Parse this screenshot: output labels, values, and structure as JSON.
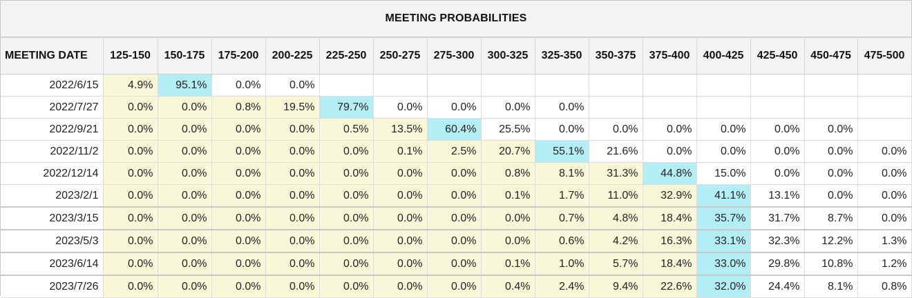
{
  "title": "MEETING PROBABILITIES",
  "columns": [
    "MEETING DATE",
    "125-150",
    "150-175",
    "175-200",
    "200-225",
    "225-250",
    "250-275",
    "275-300",
    "300-325",
    "325-350",
    "350-375",
    "375-400",
    "400-425",
    "425-450",
    "450-475",
    "475-500"
  ],
  "colors": {
    "highlight_yellow": "#f8f8d8",
    "highlight_cyan": "#b3eef5",
    "header_bg": "#f3f3f3"
  },
  "rows": [
    {
      "date": "2022/6/15",
      "cells": [
        [
          "4.9%",
          "y"
        ],
        [
          "95.1%",
          "c"
        ],
        [
          "0.0%",
          "e"
        ],
        [
          "0.0%",
          "e"
        ],
        [
          "",
          "e"
        ],
        [
          "",
          "e"
        ],
        [
          "",
          "e"
        ],
        [
          "",
          "e"
        ],
        [
          "",
          "e"
        ],
        [
          "",
          "e"
        ],
        [
          "",
          "e"
        ],
        [
          "",
          "e"
        ],
        [
          "",
          "e"
        ],
        [
          "",
          "e"
        ],
        [
          "",
          "e"
        ]
      ]
    },
    {
      "date": "2022/7/27",
      "cells": [
        [
          "0.0%",
          "y"
        ],
        [
          "0.0%",
          "y"
        ],
        [
          "0.8%",
          "y"
        ],
        [
          "19.5%",
          "y"
        ],
        [
          "79.7%",
          "c"
        ],
        [
          "0.0%",
          "e"
        ],
        [
          "0.0%",
          "e"
        ],
        [
          "0.0%",
          "e"
        ],
        [
          "0.0%",
          "e"
        ],
        [
          "",
          "e"
        ],
        [
          "",
          "e"
        ],
        [
          "",
          "e"
        ],
        [
          "",
          "e"
        ],
        [
          "",
          "e"
        ],
        [
          "",
          "e"
        ]
      ]
    },
    {
      "date": "2022/9/21",
      "cells": [
        [
          "0.0%",
          "y"
        ],
        [
          "0.0%",
          "y"
        ],
        [
          "0.0%",
          "y"
        ],
        [
          "0.0%",
          "y"
        ],
        [
          "0.5%",
          "y"
        ],
        [
          "13.5%",
          "y"
        ],
        [
          "60.4%",
          "c"
        ],
        [
          "25.5%",
          "e"
        ],
        [
          "0.0%",
          "e"
        ],
        [
          "0.0%",
          "e"
        ],
        [
          "0.0%",
          "e"
        ],
        [
          "0.0%",
          "e"
        ],
        [
          "0.0%",
          "e"
        ],
        [
          "0.0%",
          "e"
        ],
        [
          "",
          "e"
        ]
      ]
    },
    {
      "date": "2022/11/2",
      "cells": [
        [
          "0.0%",
          "y"
        ],
        [
          "0.0%",
          "y"
        ],
        [
          "0.0%",
          "y"
        ],
        [
          "0.0%",
          "y"
        ],
        [
          "0.0%",
          "y"
        ],
        [
          "0.1%",
          "y"
        ],
        [
          "2.5%",
          "y"
        ],
        [
          "20.7%",
          "y"
        ],
        [
          "55.1%",
          "c"
        ],
        [
          "21.6%",
          "e"
        ],
        [
          "0.0%",
          "e"
        ],
        [
          "0.0%",
          "e"
        ],
        [
          "0.0%",
          "e"
        ],
        [
          "0.0%",
          "e"
        ],
        [
          "0.0%",
          "e"
        ]
      ]
    },
    {
      "date": "2022/12/14",
      "cells": [
        [
          "0.0%",
          "y"
        ],
        [
          "0.0%",
          "y"
        ],
        [
          "0.0%",
          "y"
        ],
        [
          "0.0%",
          "y"
        ],
        [
          "0.0%",
          "y"
        ],
        [
          "0.0%",
          "y"
        ],
        [
          "0.0%",
          "y"
        ],
        [
          "0.8%",
          "y"
        ],
        [
          "8.1%",
          "y"
        ],
        [
          "31.3%",
          "y"
        ],
        [
          "44.8%",
          "c"
        ],
        [
          "15.0%",
          "e"
        ],
        [
          "0.0%",
          "e"
        ],
        [
          "0.0%",
          "e"
        ],
        [
          "0.0%",
          "e"
        ]
      ]
    },
    {
      "date": "2023/2/1",
      "cells": [
        [
          "0.0%",
          "y"
        ],
        [
          "0.0%",
          "y"
        ],
        [
          "0.0%",
          "y"
        ],
        [
          "0.0%",
          "y"
        ],
        [
          "0.0%",
          "y"
        ],
        [
          "0.0%",
          "y"
        ],
        [
          "0.0%",
          "y"
        ],
        [
          "0.1%",
          "y"
        ],
        [
          "1.7%",
          "y"
        ],
        [
          "11.0%",
          "y"
        ],
        [
          "32.9%",
          "y"
        ],
        [
          "41.1%",
          "c"
        ],
        [
          "13.1%",
          "e"
        ],
        [
          "0.0%",
          "e"
        ],
        [
          "0.0%",
          "e"
        ]
      ]
    },
    {
      "date": "2023/3/15",
      "sep": true,
      "cells": [
        [
          "0.0%",
          "y"
        ],
        [
          "0.0%",
          "y"
        ],
        [
          "0.0%",
          "y"
        ],
        [
          "0.0%",
          "y"
        ],
        [
          "0.0%",
          "y"
        ],
        [
          "0.0%",
          "y"
        ],
        [
          "0.0%",
          "y"
        ],
        [
          "0.0%",
          "y"
        ],
        [
          "0.7%",
          "y"
        ],
        [
          "4.8%",
          "y"
        ],
        [
          "18.4%",
          "y"
        ],
        [
          "35.7%",
          "c"
        ],
        [
          "31.7%",
          "e"
        ],
        [
          "8.7%",
          "e"
        ],
        [
          "0.0%",
          "e"
        ]
      ]
    },
    {
      "date": "2023/5/3",
      "sep": true,
      "cells": [
        [
          "0.0%",
          "y"
        ],
        [
          "0.0%",
          "y"
        ],
        [
          "0.0%",
          "y"
        ],
        [
          "0.0%",
          "y"
        ],
        [
          "0.0%",
          "y"
        ],
        [
          "0.0%",
          "y"
        ],
        [
          "0.0%",
          "y"
        ],
        [
          "0.0%",
          "y"
        ],
        [
          "0.6%",
          "y"
        ],
        [
          "4.2%",
          "y"
        ],
        [
          "16.3%",
          "y"
        ],
        [
          "33.1%",
          "c"
        ],
        [
          "32.3%",
          "e"
        ],
        [
          "12.2%",
          "e"
        ],
        [
          "1.3%",
          "e"
        ]
      ]
    },
    {
      "date": "2023/6/14",
      "sep": true,
      "cells": [
        [
          "0.0%",
          "y"
        ],
        [
          "0.0%",
          "y"
        ],
        [
          "0.0%",
          "y"
        ],
        [
          "0.0%",
          "y"
        ],
        [
          "0.0%",
          "y"
        ],
        [
          "0.0%",
          "y"
        ],
        [
          "0.0%",
          "y"
        ],
        [
          "0.1%",
          "y"
        ],
        [
          "1.0%",
          "y"
        ],
        [
          "5.7%",
          "y"
        ],
        [
          "18.4%",
          "y"
        ],
        [
          "33.0%",
          "c"
        ],
        [
          "29.8%",
          "e"
        ],
        [
          "10.8%",
          "e"
        ],
        [
          "1.2%",
          "e"
        ]
      ]
    },
    {
      "date": "2023/7/26",
      "sep": true,
      "cells": [
        [
          "0.0%",
          "y"
        ],
        [
          "0.0%",
          "y"
        ],
        [
          "0.0%",
          "y"
        ],
        [
          "0.0%",
          "y"
        ],
        [
          "0.0%",
          "y"
        ],
        [
          "0.0%",
          "y"
        ],
        [
          "0.0%",
          "y"
        ],
        [
          "0.4%",
          "y"
        ],
        [
          "2.4%",
          "y"
        ],
        [
          "9.4%",
          "y"
        ],
        [
          "22.6%",
          "y"
        ],
        [
          "32.0%",
          "c"
        ],
        [
          "24.4%",
          "e"
        ],
        [
          "8.1%",
          "e"
        ],
        [
          "0.8%",
          "e"
        ]
      ]
    }
  ]
}
